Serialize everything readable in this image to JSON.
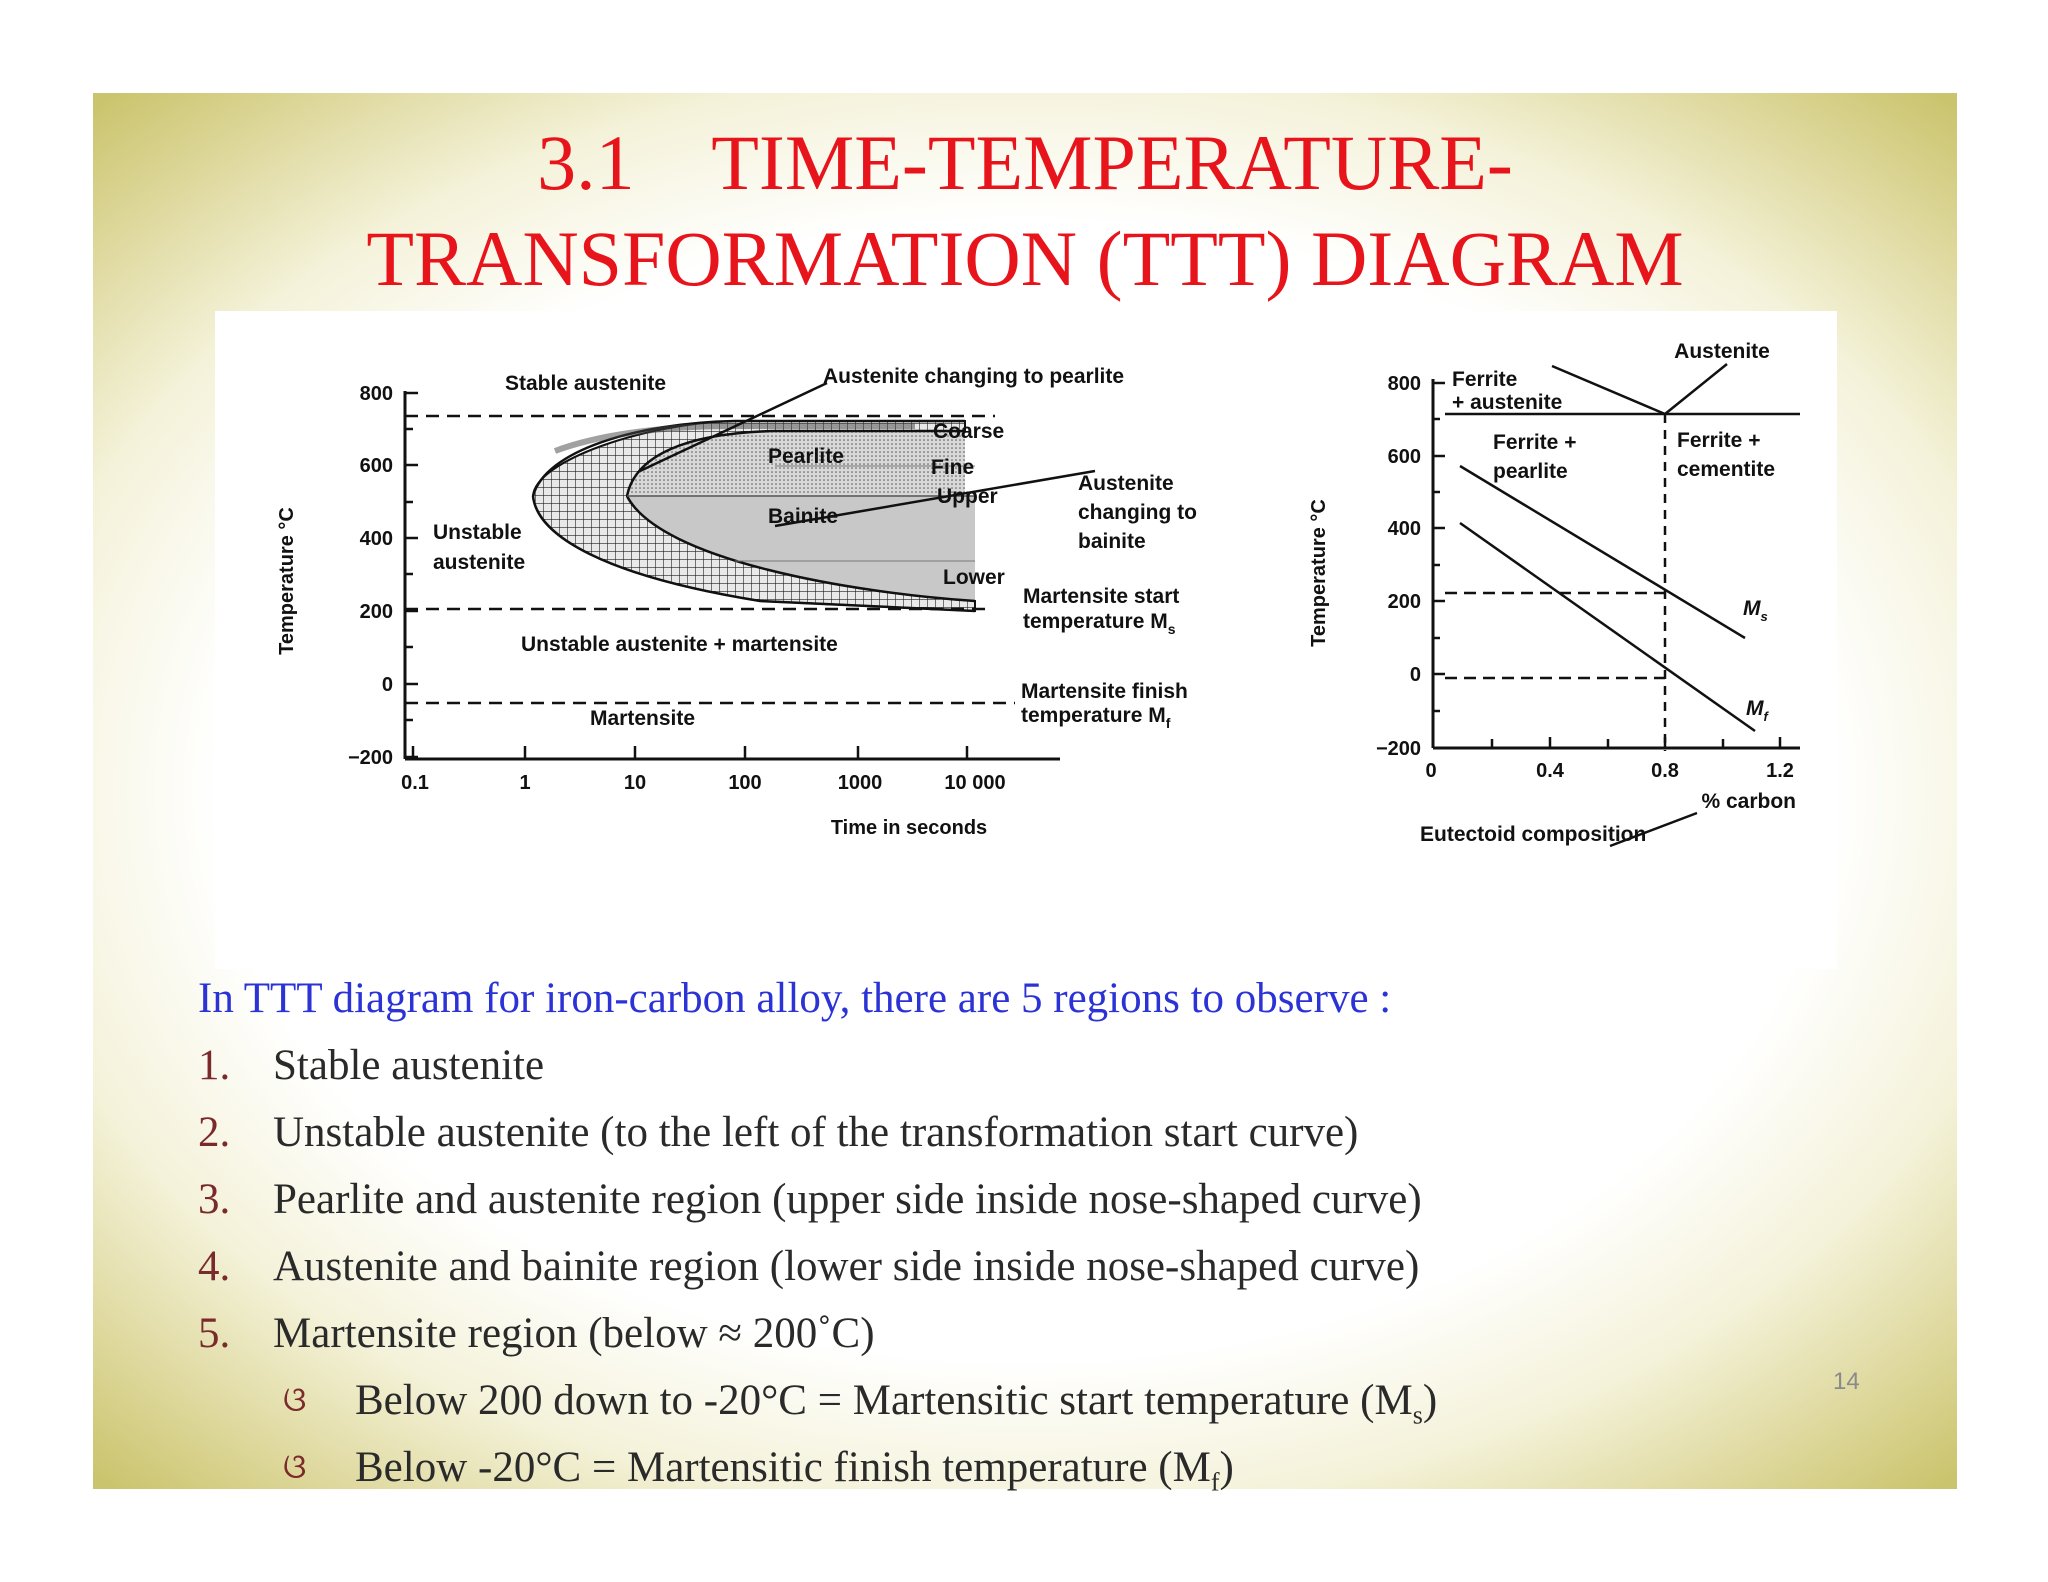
{
  "slide": {
    "title_line1": "3.1    TIME-TEMPERATURE-",
    "title_line2": "TRANSFORMATION (TTT) DIAGRAM",
    "page_number": "14"
  },
  "ttt_diagram": {
    "y_axis_label": "Temperature °C",
    "x_axis_label": "Time in seconds",
    "y_ticks": [
      "800",
      "600",
      "400",
      "200",
      "0",
      "−200"
    ],
    "x_ticks": [
      "0.1",
      "1",
      "10",
      "100",
      "1000",
      "10 000"
    ],
    "labels": {
      "stable_austenite": "Stable austenite",
      "austenite_changing_to_pearlite": "Austenite changing to pearlite",
      "coarse": "Coarse",
      "pearlite": "Pearlite",
      "fine": "Fine",
      "upper": "Upper",
      "bainite": "Bainite",
      "lower": "Lower",
      "unstable": "Unstable",
      "austenite": "austenite",
      "austenite_changing_1": "Austenite",
      "austenite_changing_2": "changing to",
      "austenite_changing_3": "bainite",
      "ms_1": "Martensite start",
      "ms_2": "temperature M",
      "ms_sub": "s",
      "unstable_austenite_martensite": "Unstable austenite + martensite",
      "mf_1": "Martensite finish",
      "mf_2": "temperature M",
      "mf_sub": "f",
      "martensite": "Martensite"
    }
  },
  "phase_diagram": {
    "y_axis_label": "Temperature °C",
    "x_axis_label": "% carbon",
    "y_ticks": [
      "800",
      "600",
      "400",
      "200",
      "0",
      "−200"
    ],
    "x_ticks": [
      "0",
      "0.4",
      "0.8",
      "1.2"
    ],
    "labels": {
      "austenite": "Austenite",
      "ferrite": "Ferrite",
      "plus_austenite": "+ austenite",
      "ferrite_plus_1": "Ferrite +",
      "pearlite": "pearlite",
      "ferrite_plus_2": "Ferrite +",
      "cementite": "cementite",
      "ms": "M",
      "ms_sub": "s",
      "mf": "M",
      "mf_sub": "f",
      "eutectoid": "Eutectoid composition"
    }
  },
  "body": {
    "intro": "In TTT diagram for iron-carbon alloy, there are 5 regions to observe :",
    "items": [
      {
        "num": "1.",
        "text": " Stable austenite"
      },
      {
        "num": "2.",
        "text": "Unstable austenite (to the left of the transformation start curve)"
      },
      {
        "num": "3.",
        "text": "Pearlite and austenite region (upper side inside nose-shaped curve)"
      },
      {
        "num": "4.",
        "text": "Austenite and bainite region (lower side inside nose-shaped curve)"
      },
      {
        "num": "5.",
        "text": "Martensite region (below ≈ 200˚C)"
      }
    ],
    "bullet_glyph": "ଓ",
    "sub1_text": "Below 200 down to -20°C = Martensitic start temperature (M",
    "sub1_sub": "s",
    "sub1_end": ")",
    "sub2_text": "Below -20°C = Martensitic finish temperature (M",
    "sub2_sub": "f",
    "sub2_end": ")"
  }
}
